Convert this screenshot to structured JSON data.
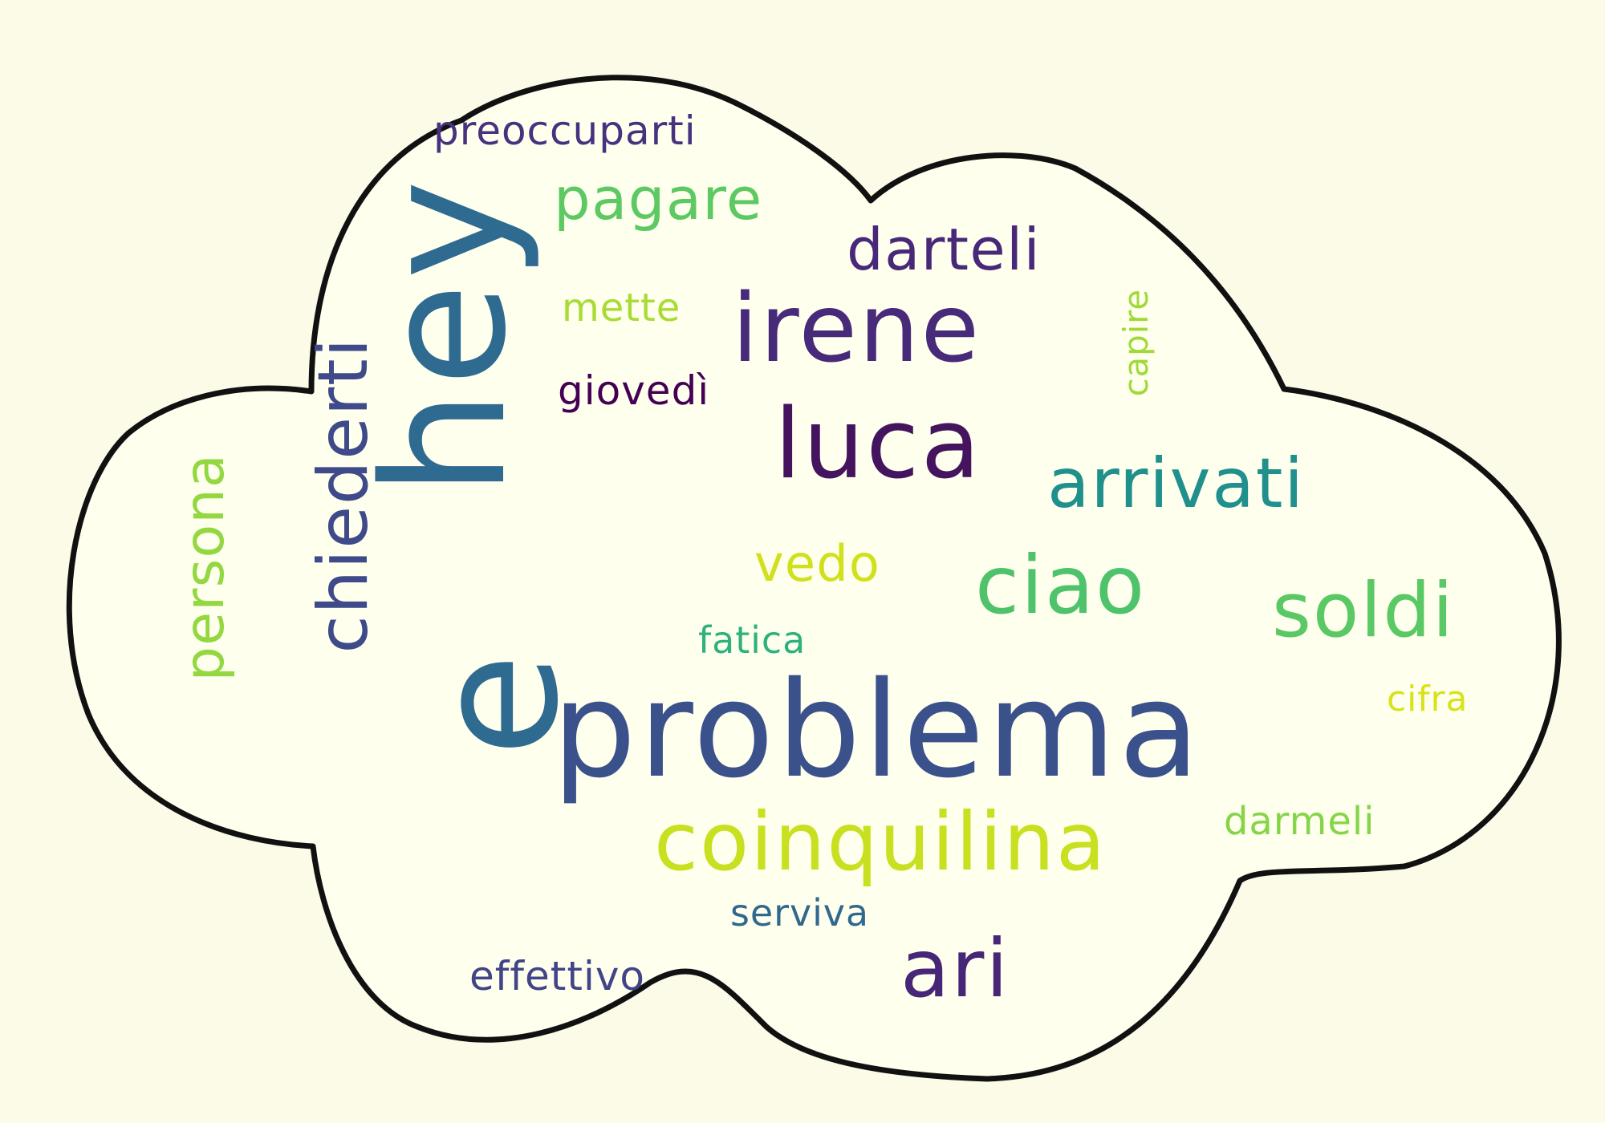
{
  "cloud": {
    "background_color": "#fbfbe8",
    "outline_color": "#111111",
    "fill_color": "#ffffee"
  },
  "words": [
    {
      "text": "hey",
      "color": "#2f6a90"
    },
    {
      "text": "problema",
      "color": "#3b518b"
    },
    {
      "text": "e",
      "color": "#2f6a90"
    },
    {
      "text": "irene",
      "color": "#472a7a"
    },
    {
      "text": "luca",
      "color": "#45145f"
    },
    {
      "text": "ciao",
      "color": "#4ec36b"
    },
    {
      "text": "soldi",
      "color": "#5ac864"
    },
    {
      "text": "coinquilina",
      "color": "#c8e020"
    },
    {
      "text": "arrivati",
      "color": "#20908d"
    },
    {
      "text": "chiederti",
      "color": "#3e4a89"
    },
    {
      "text": "pagare",
      "color": "#5dc963"
    },
    {
      "text": "darteli",
      "color": "#482878"
    },
    {
      "text": "persona",
      "color": "#93d741"
    },
    {
      "text": "vedo",
      "color": "#d0e11c"
    },
    {
      "text": "ari",
      "color": "#482677"
    },
    {
      "text": "preoccuparti",
      "color": "#46327e"
    },
    {
      "text": "mette",
      "color": "#a8db34"
    },
    {
      "text": "giovedì",
      "color": "#440154"
    },
    {
      "text": "capire",
      "color": "#a0da39"
    },
    {
      "text": "fatica",
      "color": "#2db27d"
    },
    {
      "text": "cifra",
      "color": "#d8e219"
    },
    {
      "text": "darmeli",
      "color": "#86d549"
    },
    {
      "text": "serviva",
      "color": "#31688e"
    },
    {
      "text": "effettivo",
      "color": "#414487"
    }
  ]
}
